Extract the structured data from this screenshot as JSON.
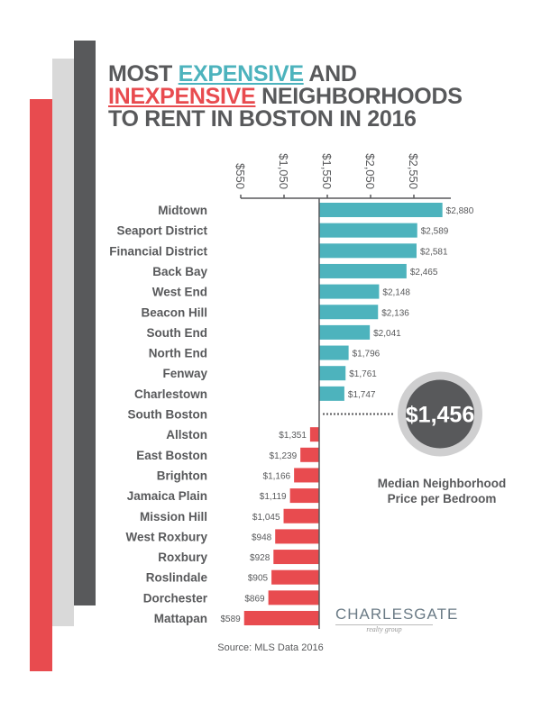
{
  "title": {
    "part1": "MOST ",
    "expensive": "EXPENSIVE",
    "part2": " AND",
    "inexpensive": "INEXPENSIVE",
    "part3": " NEIGHBORHOODS",
    "line3": "TO RENT IN BOSTON IN 2016"
  },
  "colors": {
    "expensive": "#4db3bd",
    "inexpensive": "#e84b4f",
    "dark": "#58595b",
    "light": "#d9d9d9"
  },
  "chart_data": {
    "type": "bar",
    "orientation": "horizontal",
    "baseline": 1456,
    "xlim": [
      550,
      2950
    ],
    "ticks": [
      "$550",
      "$1,050",
      "$1,550",
      "$2,050",
      "$2,550"
    ],
    "tick_values": [
      550,
      1050,
      1550,
      2050,
      2550
    ],
    "categories": [
      "Midtown",
      "Seaport District",
      "Financial District",
      "Back Bay",
      "West End",
      "Beacon Hill",
      "South End",
      "North End",
      "Fenway",
      "Charlestown",
      "South Boston",
      "Allston",
      "East Boston",
      "Brighton",
      "Jamaica Plain",
      "Mission Hill",
      "West Roxbury",
      "Roxbury",
      "Roslindale",
      "Dorchester",
      "Mattapan"
    ],
    "values": [
      2880,
      2589,
      2581,
      2465,
      2148,
      2136,
      2041,
      1796,
      1761,
      1747,
      1456,
      1351,
      1239,
      1166,
      1119,
      1045,
      948,
      928,
      905,
      869,
      589
    ],
    "labels": [
      "$2,880",
      "$2,589",
      "$2,581",
      "$2,465",
      "$2,148",
      "$2,136",
      "$2,041",
      "$1,796",
      "$1,761",
      "$1,747",
      "",
      "$1,351",
      "$1,239",
      "$1,166",
      "$1,119",
      "$1,045",
      "$948",
      "$928",
      "$905",
      "$869",
      "$589"
    ]
  },
  "median": {
    "value": "$1,456",
    "caption_line1": "Median Neighborhood",
    "caption_line2": "Price per Bedroom"
  },
  "logo": {
    "name": "CHARLESGATE",
    "sub": "realty group"
  },
  "source": "Source: MLS Data 2016"
}
